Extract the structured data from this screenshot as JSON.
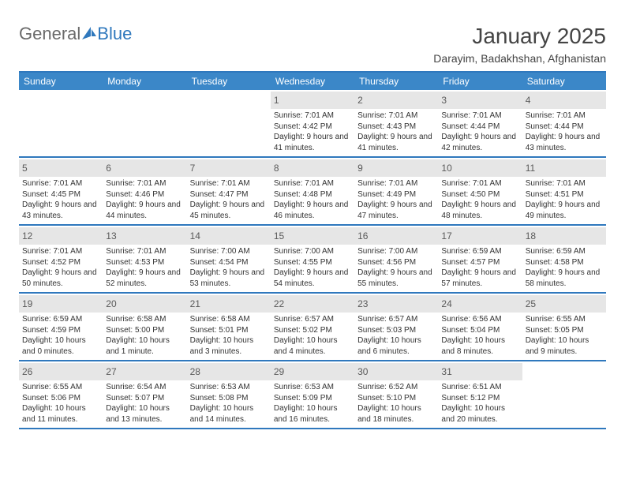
{
  "brand": {
    "text1": "General",
    "text2": "Blue",
    "sail_color": "#2f78bd"
  },
  "title": "January 2025",
  "location": "Darayim, Badakhshan, Afghanistan",
  "colors": {
    "header_bg": "#3b87c8",
    "rule": "#2f78bd",
    "daynum_bg": "#e6e6e6",
    "text": "#333333"
  },
  "day_headers": [
    "Sunday",
    "Monday",
    "Tuesday",
    "Wednesday",
    "Thursday",
    "Friday",
    "Saturday"
  ],
  "weeks": [
    [
      {
        "day": "",
        "sunrise": "",
        "sunset": "",
        "daylight": ""
      },
      {
        "day": "",
        "sunrise": "",
        "sunset": "",
        "daylight": ""
      },
      {
        "day": "",
        "sunrise": "",
        "sunset": "",
        "daylight": ""
      },
      {
        "day": "1",
        "sunrise": "Sunrise: 7:01 AM",
        "sunset": "Sunset: 4:42 PM",
        "daylight": "Daylight: 9 hours and 41 minutes."
      },
      {
        "day": "2",
        "sunrise": "Sunrise: 7:01 AM",
        "sunset": "Sunset: 4:43 PM",
        "daylight": "Daylight: 9 hours and 41 minutes."
      },
      {
        "day": "3",
        "sunrise": "Sunrise: 7:01 AM",
        "sunset": "Sunset: 4:44 PM",
        "daylight": "Daylight: 9 hours and 42 minutes."
      },
      {
        "day": "4",
        "sunrise": "Sunrise: 7:01 AM",
        "sunset": "Sunset: 4:44 PM",
        "daylight": "Daylight: 9 hours and 43 minutes."
      }
    ],
    [
      {
        "day": "5",
        "sunrise": "Sunrise: 7:01 AM",
        "sunset": "Sunset: 4:45 PM",
        "daylight": "Daylight: 9 hours and 43 minutes."
      },
      {
        "day": "6",
        "sunrise": "Sunrise: 7:01 AM",
        "sunset": "Sunset: 4:46 PM",
        "daylight": "Daylight: 9 hours and 44 minutes."
      },
      {
        "day": "7",
        "sunrise": "Sunrise: 7:01 AM",
        "sunset": "Sunset: 4:47 PM",
        "daylight": "Daylight: 9 hours and 45 minutes."
      },
      {
        "day": "8",
        "sunrise": "Sunrise: 7:01 AM",
        "sunset": "Sunset: 4:48 PM",
        "daylight": "Daylight: 9 hours and 46 minutes."
      },
      {
        "day": "9",
        "sunrise": "Sunrise: 7:01 AM",
        "sunset": "Sunset: 4:49 PM",
        "daylight": "Daylight: 9 hours and 47 minutes."
      },
      {
        "day": "10",
        "sunrise": "Sunrise: 7:01 AM",
        "sunset": "Sunset: 4:50 PM",
        "daylight": "Daylight: 9 hours and 48 minutes."
      },
      {
        "day": "11",
        "sunrise": "Sunrise: 7:01 AM",
        "sunset": "Sunset: 4:51 PM",
        "daylight": "Daylight: 9 hours and 49 minutes."
      }
    ],
    [
      {
        "day": "12",
        "sunrise": "Sunrise: 7:01 AM",
        "sunset": "Sunset: 4:52 PM",
        "daylight": "Daylight: 9 hours and 50 minutes."
      },
      {
        "day": "13",
        "sunrise": "Sunrise: 7:01 AM",
        "sunset": "Sunset: 4:53 PM",
        "daylight": "Daylight: 9 hours and 52 minutes."
      },
      {
        "day": "14",
        "sunrise": "Sunrise: 7:00 AM",
        "sunset": "Sunset: 4:54 PM",
        "daylight": "Daylight: 9 hours and 53 minutes."
      },
      {
        "day": "15",
        "sunrise": "Sunrise: 7:00 AM",
        "sunset": "Sunset: 4:55 PM",
        "daylight": "Daylight: 9 hours and 54 minutes."
      },
      {
        "day": "16",
        "sunrise": "Sunrise: 7:00 AM",
        "sunset": "Sunset: 4:56 PM",
        "daylight": "Daylight: 9 hours and 55 minutes."
      },
      {
        "day": "17",
        "sunrise": "Sunrise: 6:59 AM",
        "sunset": "Sunset: 4:57 PM",
        "daylight": "Daylight: 9 hours and 57 minutes."
      },
      {
        "day": "18",
        "sunrise": "Sunrise: 6:59 AM",
        "sunset": "Sunset: 4:58 PM",
        "daylight": "Daylight: 9 hours and 58 minutes."
      }
    ],
    [
      {
        "day": "19",
        "sunrise": "Sunrise: 6:59 AM",
        "sunset": "Sunset: 4:59 PM",
        "daylight": "Daylight: 10 hours and 0 minutes."
      },
      {
        "day": "20",
        "sunrise": "Sunrise: 6:58 AM",
        "sunset": "Sunset: 5:00 PM",
        "daylight": "Daylight: 10 hours and 1 minute."
      },
      {
        "day": "21",
        "sunrise": "Sunrise: 6:58 AM",
        "sunset": "Sunset: 5:01 PM",
        "daylight": "Daylight: 10 hours and 3 minutes."
      },
      {
        "day": "22",
        "sunrise": "Sunrise: 6:57 AM",
        "sunset": "Sunset: 5:02 PM",
        "daylight": "Daylight: 10 hours and 4 minutes."
      },
      {
        "day": "23",
        "sunrise": "Sunrise: 6:57 AM",
        "sunset": "Sunset: 5:03 PM",
        "daylight": "Daylight: 10 hours and 6 minutes."
      },
      {
        "day": "24",
        "sunrise": "Sunrise: 6:56 AM",
        "sunset": "Sunset: 5:04 PM",
        "daylight": "Daylight: 10 hours and 8 minutes."
      },
      {
        "day": "25",
        "sunrise": "Sunrise: 6:55 AM",
        "sunset": "Sunset: 5:05 PM",
        "daylight": "Daylight: 10 hours and 9 minutes."
      }
    ],
    [
      {
        "day": "26",
        "sunrise": "Sunrise: 6:55 AM",
        "sunset": "Sunset: 5:06 PM",
        "daylight": "Daylight: 10 hours and 11 minutes."
      },
      {
        "day": "27",
        "sunrise": "Sunrise: 6:54 AM",
        "sunset": "Sunset: 5:07 PM",
        "daylight": "Daylight: 10 hours and 13 minutes."
      },
      {
        "day": "28",
        "sunrise": "Sunrise: 6:53 AM",
        "sunset": "Sunset: 5:08 PM",
        "daylight": "Daylight: 10 hours and 14 minutes."
      },
      {
        "day": "29",
        "sunrise": "Sunrise: 6:53 AM",
        "sunset": "Sunset: 5:09 PM",
        "daylight": "Daylight: 10 hours and 16 minutes."
      },
      {
        "day": "30",
        "sunrise": "Sunrise: 6:52 AM",
        "sunset": "Sunset: 5:10 PM",
        "daylight": "Daylight: 10 hours and 18 minutes."
      },
      {
        "day": "31",
        "sunrise": "Sunrise: 6:51 AM",
        "sunset": "Sunset: 5:12 PM",
        "daylight": "Daylight: 10 hours and 20 minutes."
      },
      {
        "day": "",
        "sunrise": "",
        "sunset": "",
        "daylight": ""
      }
    ]
  ]
}
